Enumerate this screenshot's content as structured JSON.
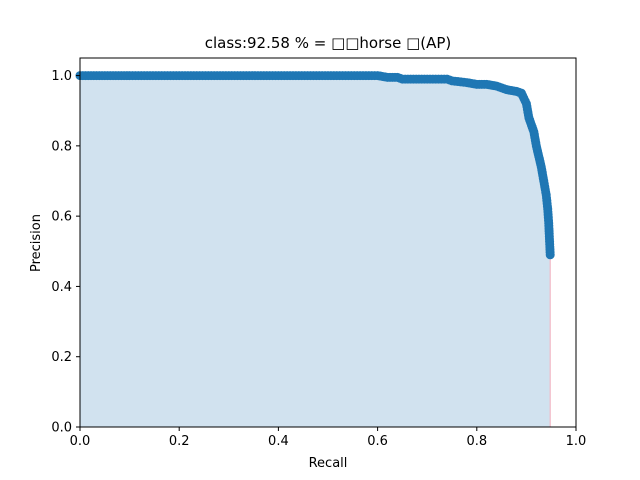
{
  "chart_data": {
    "type": "area",
    "title": "class:92.58 % = □□horse □(AP)",
    "xlabel": "Recall",
    "ylabel": "Precision",
    "xlim": [
      0.0,
      1.0
    ],
    "ylim": [
      0.0,
      1.05
    ],
    "x_ticks": [
      "0.0",
      "0.2",
      "0.4",
      "0.6",
      "0.8",
      "1.0"
    ],
    "y_ticks": [
      "0.0",
      "0.2",
      "0.4",
      "0.6",
      "0.8",
      "1.0"
    ],
    "grid": false,
    "series": [
      {
        "color": "#1f77b4",
        "fill_color": "#d1e2ef",
        "drop_line_color": "#f2b8c6",
        "x": [
          0.0,
          0.05,
          0.1,
          0.2,
          0.3,
          0.4,
          0.5,
          0.6,
          0.62,
          0.64,
          0.65,
          0.7,
          0.74,
          0.75,
          0.78,
          0.8,
          0.82,
          0.84,
          0.86,
          0.88,
          0.89,
          0.9,
          0.905,
          0.91,
          0.915,
          0.92,
          0.925,
          0.93,
          0.935,
          0.94,
          0.943,
          0.945,
          0.946,
          0.947,
          0.948
        ],
        "y": [
          1.0,
          1.0,
          1.0,
          1.0,
          1.0,
          1.0,
          1.0,
          1.0,
          0.995,
          0.995,
          0.99,
          0.99,
          0.99,
          0.985,
          0.98,
          0.975,
          0.975,
          0.97,
          0.96,
          0.955,
          0.95,
          0.92,
          0.88,
          0.86,
          0.84,
          0.8,
          0.77,
          0.74,
          0.7,
          0.66,
          0.62,
          0.58,
          0.55,
          0.52,
          0.49
        ]
      }
    ]
  }
}
